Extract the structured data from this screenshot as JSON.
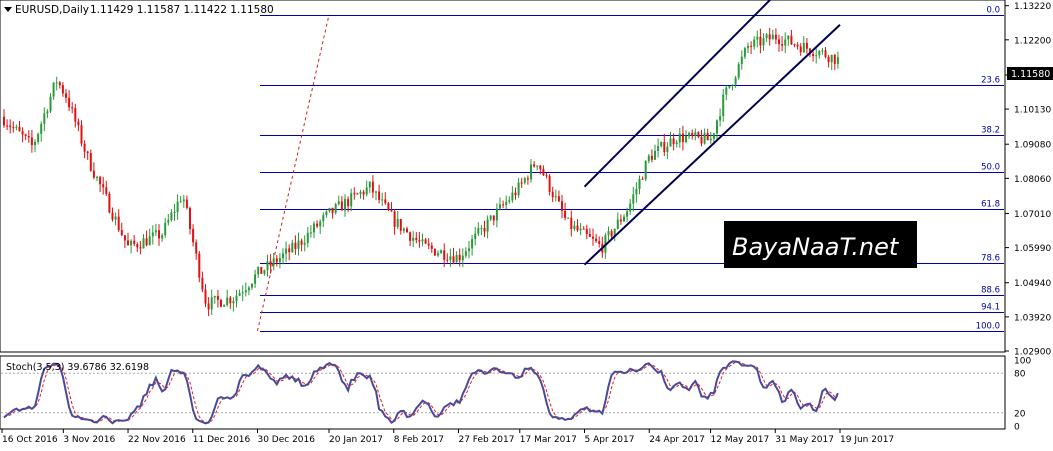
{
  "header": {
    "symbol_text": "EURUSD,Daily",
    "ohlc_text": "1.11429 1.11587 1.11422 1.11580"
  },
  "price_tag": "1.11580",
  "indicator": {
    "label": "Stoch(3,5,3) 39.6786 32.6198"
  },
  "watermark": "BayaNaaT.net",
  "colors": {
    "bull": "#2a9a3a",
    "bear": "#e01010",
    "fib": "#0000aa",
    "channel": "#000050",
    "stoch_main": "#4a4a9a",
    "stoch_signal": "#e02020",
    "price_tag_bg": "#000000"
  },
  "chart_data": {
    "type": "candlestick",
    "symbol": "EURUSD",
    "timeframe": "Daily",
    "ylim": [
      1.029,
      1.1336
    ],
    "y_ticks": [
      "1.13220",
      "1.12200",
      "1.11150",
      "1.10130",
      "1.09080",
      "1.08060",
      "1.07010",
      "1.05990",
      "1.04940",
      "1.03920",
      "1.02900"
    ],
    "x_labels": [
      "16 Oct 2016",
      "3 Nov 2016",
      "22 Nov 2016",
      "11 Dec 2016",
      "30 Dec 2016",
      "20 Jan 2017",
      "8 Feb 2017",
      "27 Feb 2017",
      "17 Mar 2017",
      "5 Apr 2017",
      "24 Apr 2017",
      "12 May 2017",
      "31 May 2017",
      "19 Jun 2017"
    ],
    "fibonacci": [
      {
        "level": "0.0",
        "price": 1.1295
      },
      {
        "level": "23.6",
        "price": 1.1084
      },
      {
        "level": "38.2",
        "price": 1.0937
      },
      {
        "level": "50.0",
        "price": 1.0825
      },
      {
        "level": "61.8",
        "price": 1.0713
      },
      {
        "level": "78.6",
        "price": 1.0554
      },
      {
        "level": "88.6",
        "price": 1.0457
      },
      {
        "level": "94.1",
        "price": 1.0407
      },
      {
        "level": "100.0",
        "price": 1.035
      }
    ],
    "channel_lines": [
      {
        "from": [
          "5 Apr 2017",
          1.0781
        ],
        "to": [
          "31 May 2017",
          1.1355
        ]
      },
      {
        "from": [
          "5 Apr 2017",
          1.0548
        ],
        "to": [
          "19 Jun 2017",
          1.1265
        ]
      }
    ],
    "dashed_line": {
      "from": [
        "30 Dec 2016",
        1.035
      ],
      "to": [
        "20 Jan 2017",
        1.1295
      ]
    },
    "series_points": [
      {
        "date": "16 Oct 2016",
        "close": 1.099
      },
      {
        "date": "25 Oct 2016",
        "close": 1.09
      },
      {
        "date": "1 Nov 2016",
        "close": 1.11
      },
      {
        "date": "4 Nov 2016",
        "close": 1.105
      },
      {
        "date": "10 Nov 2016",
        "close": 1.087
      },
      {
        "date": "22 Nov 2016",
        "close": 1.06
      },
      {
        "date": "2 Dec 2016",
        "close": 1.064
      },
      {
        "date": "8 Dec 2016",
        "close": 1.076
      },
      {
        "date": "15 Dec 2016",
        "close": 1.043
      },
      {
        "date": "23 Dec 2016",
        "close": 1.045
      },
      {
        "date": "30 Dec 2016",
        "close": 1.052
      },
      {
        "date": "10 Jan 2017",
        "close": 1.06
      },
      {
        "date": "20 Jan 2017",
        "close": 1.07
      },
      {
        "date": "1 Feb 2017",
        "close": 1.078
      },
      {
        "date": "8 Feb 2017",
        "close": 1.068
      },
      {
        "date": "17 Feb 2017",
        "close": 1.06
      },
      {
        "date": "27 Feb 2017",
        "close": 1.057
      },
      {
        "date": "10 Mar 2017",
        "close": 1.07
      },
      {
        "date": "17 Mar 2017",
        "close": 1.078
      },
      {
        "date": "22 Mar 2017",
        "close": 1.086
      },
      {
        "date": "31 Mar 2017",
        "close": 1.067
      },
      {
        "date": "10 Apr 2017",
        "close": 1.06
      },
      {
        "date": "18 Apr 2017",
        "close": 1.072
      },
      {
        "date": "24 Apr 2017",
        "close": 1.087
      },
      {
        "date": "2 May 2017",
        "close": 1.093
      },
      {
        "date": "12 May 2017",
        "close": 1.092
      },
      {
        "date": "16 May 2017",
        "close": 1.105
      },
      {
        "date": "23 May 2017",
        "close": 1.12
      },
      {
        "date": "31 May 2017",
        "close": 1.123
      },
      {
        "date": "8 Jun 2017",
        "close": 1.12
      },
      {
        "date": "14 Jun 2017",
        "close": 1.118
      },
      {
        "date": "19 Jun 2017",
        "close": 1.1158
      }
    ],
    "stochastic": {
      "ylim": [
        0,
        100
      ],
      "levels": [
        80,
        20
      ],
      "right_labels": [
        "100",
        "80",
        "20",
        "0"
      ],
      "main_last": 39.6786,
      "signal_last": 32.6198
    }
  }
}
